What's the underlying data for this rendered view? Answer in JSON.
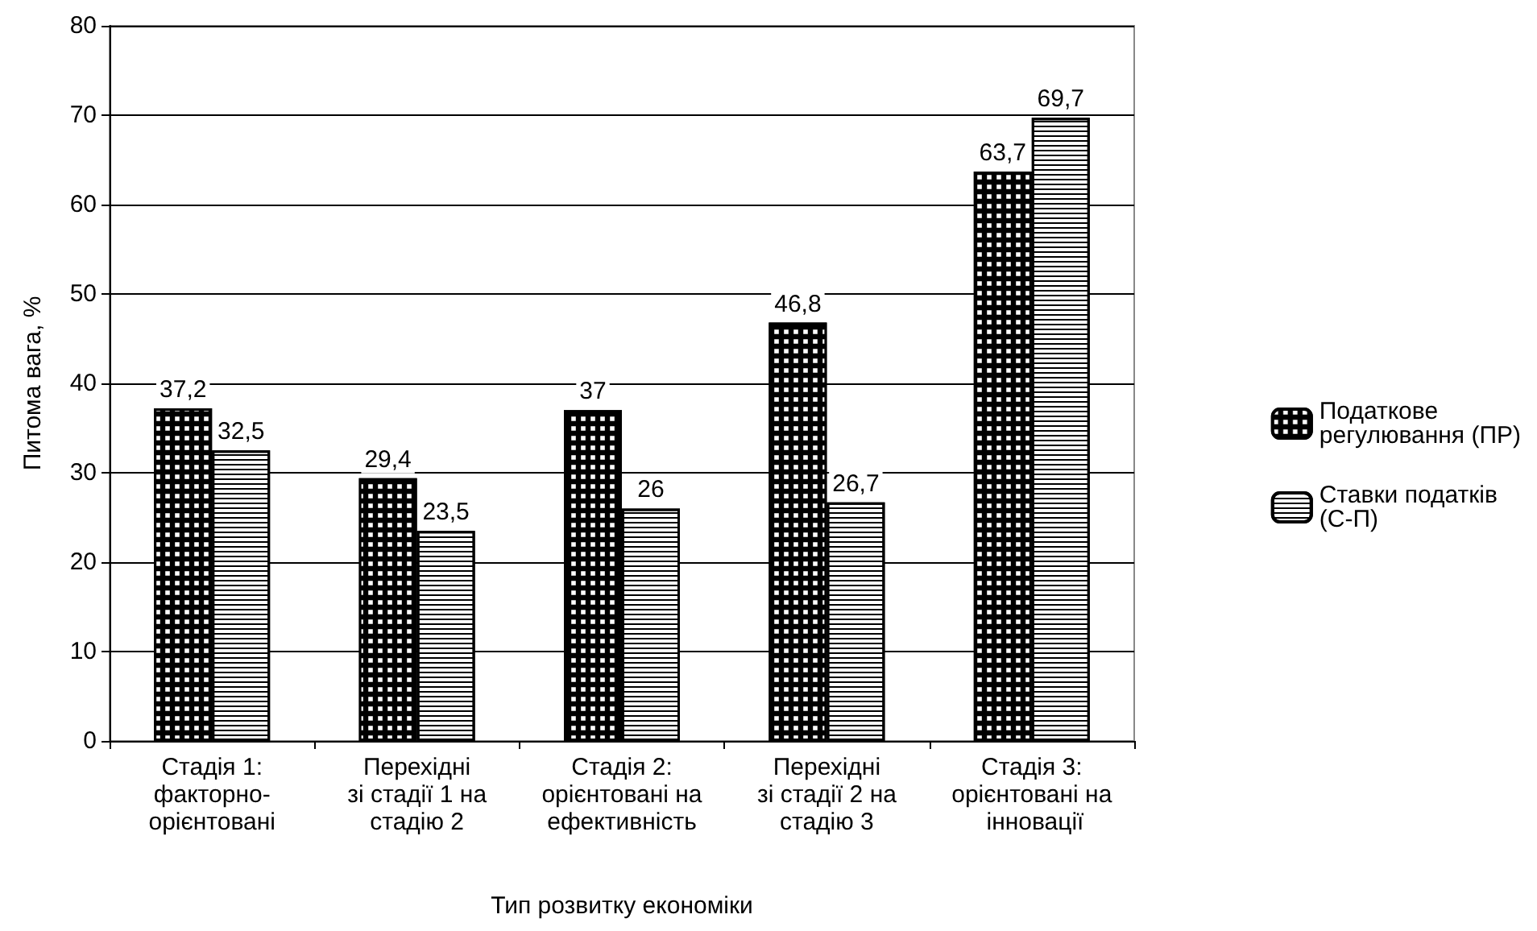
{
  "chart_data": {
    "type": "bar",
    "xlabel": "Тип розвитку економіки",
    "ylabel": "Питома вага, %",
    "categories": [
      "Стадія 1:\nфакторно-\nорієнтовані",
      "Перехідні\nзі стадії 1 на\nстадію 2",
      "Стадія 2:\nорієнтовані на\nефективність",
      "Перехідні\nзі стадії 2 на\nстадію 3",
      "Стадія 3:\nорієнтовані на\n інновації"
    ],
    "series": [
      {
        "name": "Податкове\nрегулювання (ПР)",
        "color": "#000000",
        "values": [
          37.2,
          29.4,
          37,
          46.8,
          63.7
        ],
        "value_labels": [
          "37,2",
          "29,4",
          "37",
          "46,8",
          "63,7"
        ]
      },
      {
        "name": "Ставки податків\n(С-П)",
        "color": "#ffffff",
        "values": [
          32.5,
          23.5,
          26,
          26.7,
          69.7
        ],
        "value_labels": [
          "32,5",
          "23,5",
          "26",
          "26,7",
          "69,7"
        ]
      }
    ],
    "ylim": [
      0,
      80
    ],
    "yticks": [
      0,
      10,
      20,
      30,
      40,
      50,
      60,
      70,
      80
    ],
    "grid": "y",
    "legend": "right"
  }
}
